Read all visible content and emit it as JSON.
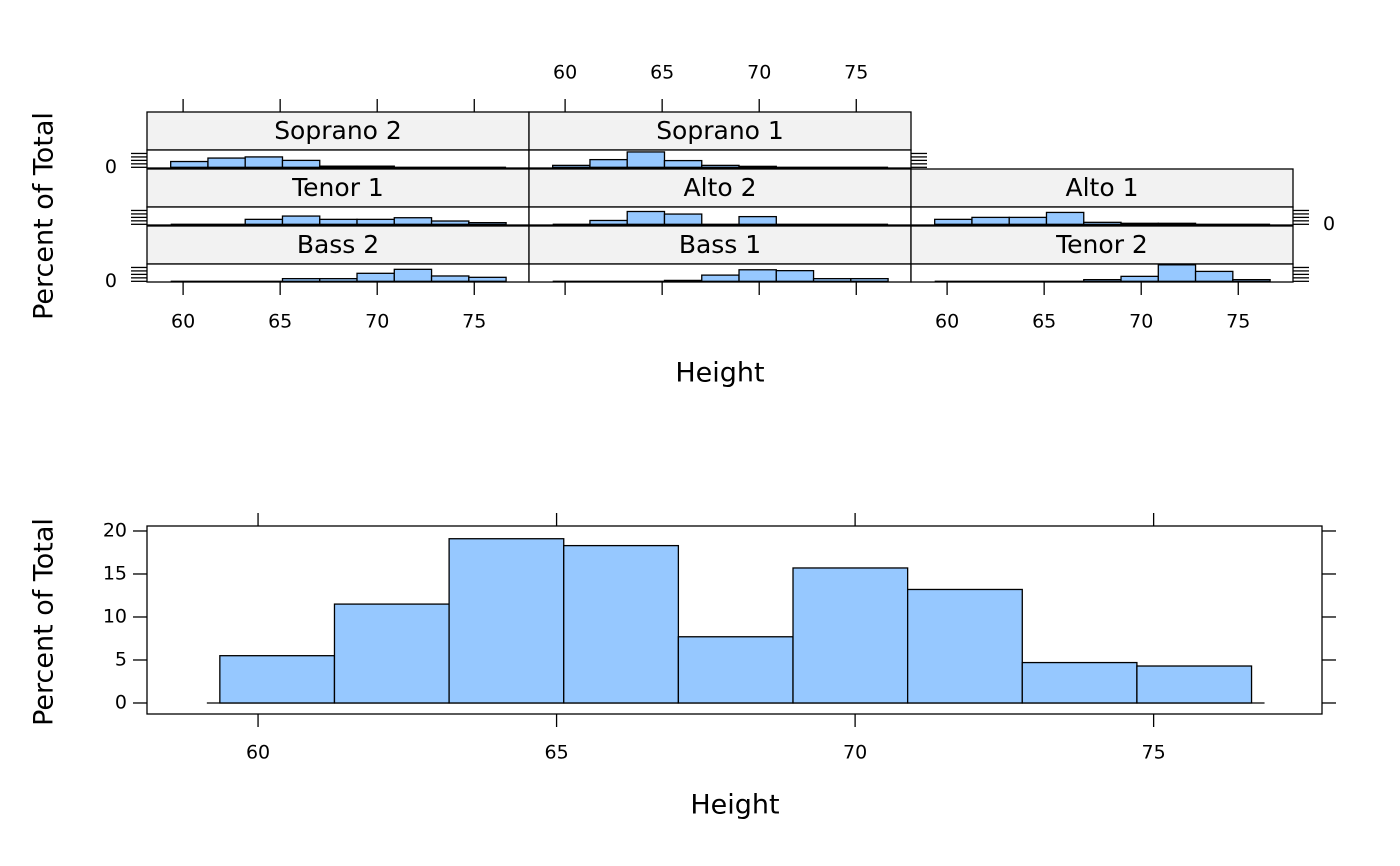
{
  "chart_data": [
    {
      "type": "histogram-panels",
      "xlabel": "Height",
      "ylabel": "Percent of Total",
      "color": "#96c8ff",
      "strip_color": "#f2f2f2",
      "bins": [
        59.36,
        61.28,
        63.2,
        65.12,
        67.04,
        68.96,
        70.88,
        72.8,
        74.72,
        76.64
      ],
      "xlim": [
        58.14,
        77.82
      ],
      "xticks": [
        60,
        65,
        70,
        75
      ],
      "ylim": [
        -2,
        50
      ],
      "yticks": [
        0,
        {
          "value": 10,
          "label": null
        },
        {
          "value": 20,
          "label": null
        },
        {
          "value": 30,
          "label": null
        },
        {
          "value": 40,
          "label": null
        }
      ],
      "panels": [
        {
          "name": "Bass 2",
          "values": [
            0,
            0,
            0,
            7.7,
            7.7,
            23.1,
            34.6,
            15.4,
            11.5
          ]
        },
        {
          "name": "Bass 1",
          "values": [
            0,
            0,
            0,
            2.6,
            17.9,
            33.3,
            30.8,
            7.7,
            7.7
          ]
        },
        {
          "name": "Tenor 2",
          "values": [
            0,
            0,
            0,
            0,
            4.8,
            14.3,
            47.6,
            28.6,
            4.8
          ]
        },
        {
          "name": "Tenor 1",
          "values": [
            0,
            0,
            14.3,
            23.8,
            14.3,
            14.3,
            19,
            9.5,
            4.8
          ]
        },
        {
          "name": "Alto 2",
          "values": [
            0,
            11.1,
            37,
            29.6,
            0,
            22.2,
            0,
            0,
            0
          ]
        },
        {
          "name": "Alto 1",
          "values": [
            14.3,
            20,
            20,
            34.3,
            5.7,
            2.9,
            2.9,
            0,
            0
          ]
        },
        {
          "name": "Soprano 2",
          "values": [
            16.7,
            26.7,
            30,
            20,
            3.3,
            3.3,
            0,
            0,
            0
          ]
        },
        {
          "name": "Soprano 1",
          "values": [
            5.6,
            22.2,
            44.4,
            19.4,
            5.6,
            2.8,
            0,
            0,
            0
          ]
        }
      ]
    },
    {
      "type": "histogram",
      "xlabel": "Height",
      "ylabel": "Percent of Total",
      "color": "#96c8ff",
      "bins": [
        59.36,
        61.28,
        63.2,
        65.12,
        67.04,
        68.96,
        70.88,
        72.8,
        74.72,
        76.64
      ],
      "values": [
        5.5,
        11.5,
        19.1,
        18.3,
        7.7,
        15.7,
        13.2,
        4.7,
        4.3
      ],
      "xlim": [
        58.14,
        77.82
      ],
      "xticks": [
        60,
        65,
        70,
        75
      ],
      "ylim": [
        -1.28,
        20.58
      ],
      "yticks": [
        0,
        5,
        10,
        15,
        20
      ]
    }
  ]
}
